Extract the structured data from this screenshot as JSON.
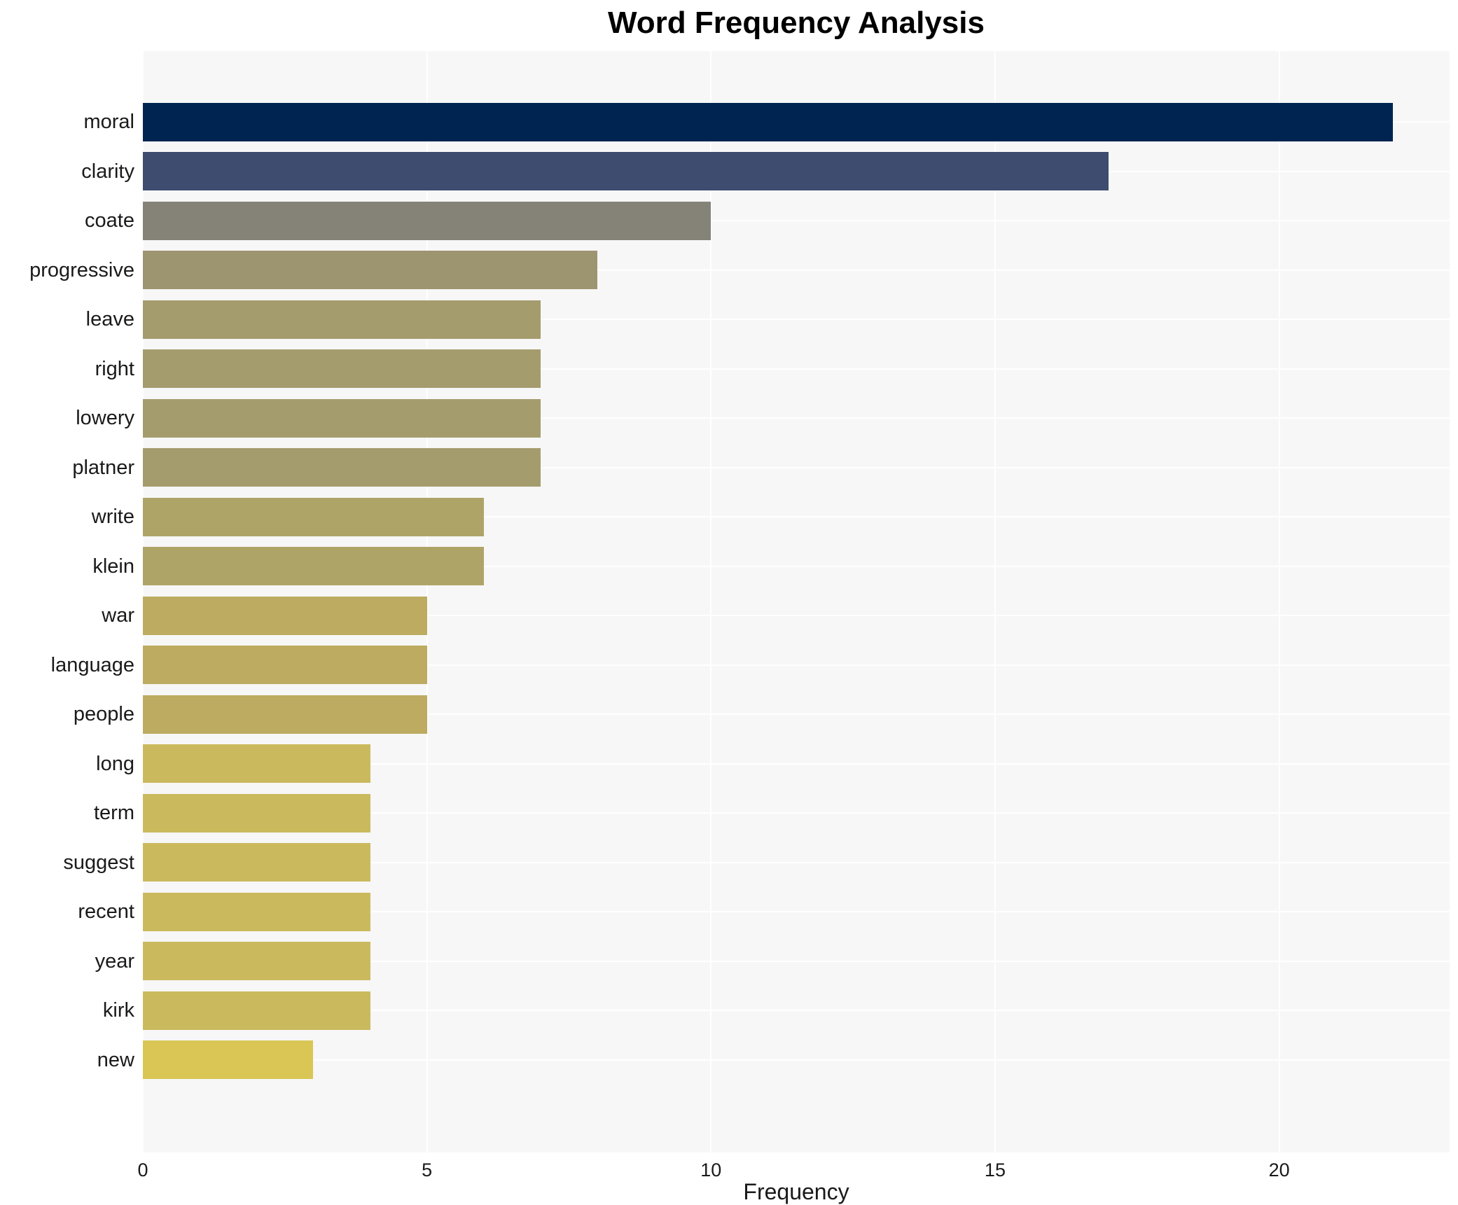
{
  "title": "Word Frequency Analysis",
  "chart_data": {
    "type": "bar",
    "orientation": "horizontal",
    "title": "Word Frequency Analysis",
    "xlabel": "Frequency",
    "ylabel": "",
    "xlim": [
      0,
      23
    ],
    "x_ticks": [
      0,
      5,
      10,
      15,
      20
    ],
    "grid": true,
    "legend": "none",
    "plot_bg_color": "#f7f7f7",
    "grid_color": "#ffffff",
    "categories": [
      "moral",
      "clarity",
      "coate",
      "progressive",
      "leave",
      "right",
      "lowery",
      "platner",
      "write",
      "klein",
      "war",
      "language",
      "people",
      "long",
      "term",
      "suggest",
      "recent",
      "year",
      "kirk",
      "new"
    ],
    "values": [
      22,
      17,
      10,
      8,
      7,
      7,
      7,
      7,
      6,
      6,
      5,
      5,
      5,
      4,
      4,
      4,
      4,
      4,
      4,
      3
    ],
    "bar_colors": [
      "#002451",
      "#3e4c70",
      "#858378",
      "#9d9470",
      "#a59c6e",
      "#a59c6e",
      "#a59c6e",
      "#a59c6e",
      "#afa468",
      "#afa468",
      "#bcab60",
      "#bcab60",
      "#bcab60",
      "#cbb95e",
      "#cbb95e",
      "#cbb95e",
      "#cbb95e",
      "#cbb95e",
      "#cbb95e",
      "#d9c654"
    ]
  }
}
